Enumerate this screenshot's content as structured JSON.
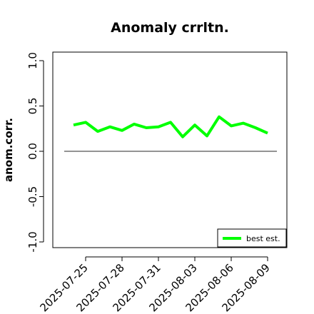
{
  "chart_data": {
    "type": "line",
    "title": "Anomaly crrltn.",
    "xlabel": "",
    "ylabel": "anom.corr.",
    "ylim": [
      -1.0,
      1.0
    ],
    "yticks": [
      "-1.0",
      "-0.5",
      "0.0",
      "0.5",
      "1.0"
    ],
    "ytick_values": [
      -1.0,
      -0.5,
      0.0,
      0.5,
      1.0
    ],
    "x": [
      "2025-07-24",
      "2025-07-25",
      "2025-07-26",
      "2025-07-27",
      "2025-07-28",
      "2025-07-29",
      "2025-07-30",
      "2025-07-31",
      "2025-08-01",
      "2025-08-02",
      "2025-08-03",
      "2025-08-04",
      "2025-08-05",
      "2025-08-06",
      "2025-08-07",
      "2025-08-08",
      "2025-08-09"
    ],
    "xticks": [
      "2025-07-25",
      "2025-07-28",
      "2025-07-31",
      "2025-08-03",
      "2025-08-06",
      "2025-08-09"
    ],
    "highlight_tick": "2025-07-31",
    "highlight_color": "#228b22",
    "series": [
      {
        "name": "best est.",
        "color": "#00ff00",
        "values": [
          0.29,
          0.32,
          0.22,
          0.27,
          0.23,
          0.3,
          0.26,
          0.27,
          0.32,
          0.16,
          0.29,
          0.17,
          0.38,
          0.28,
          0.31,
          0.26,
          0.2
        ]
      }
    ],
    "reference_line": {
      "y": 0.0,
      "x_start": "2025-07-23",
      "x_end": "2025-08-10",
      "color": "#555555"
    },
    "legend": {
      "position": "bottom-right"
    },
    "grid": false
  }
}
